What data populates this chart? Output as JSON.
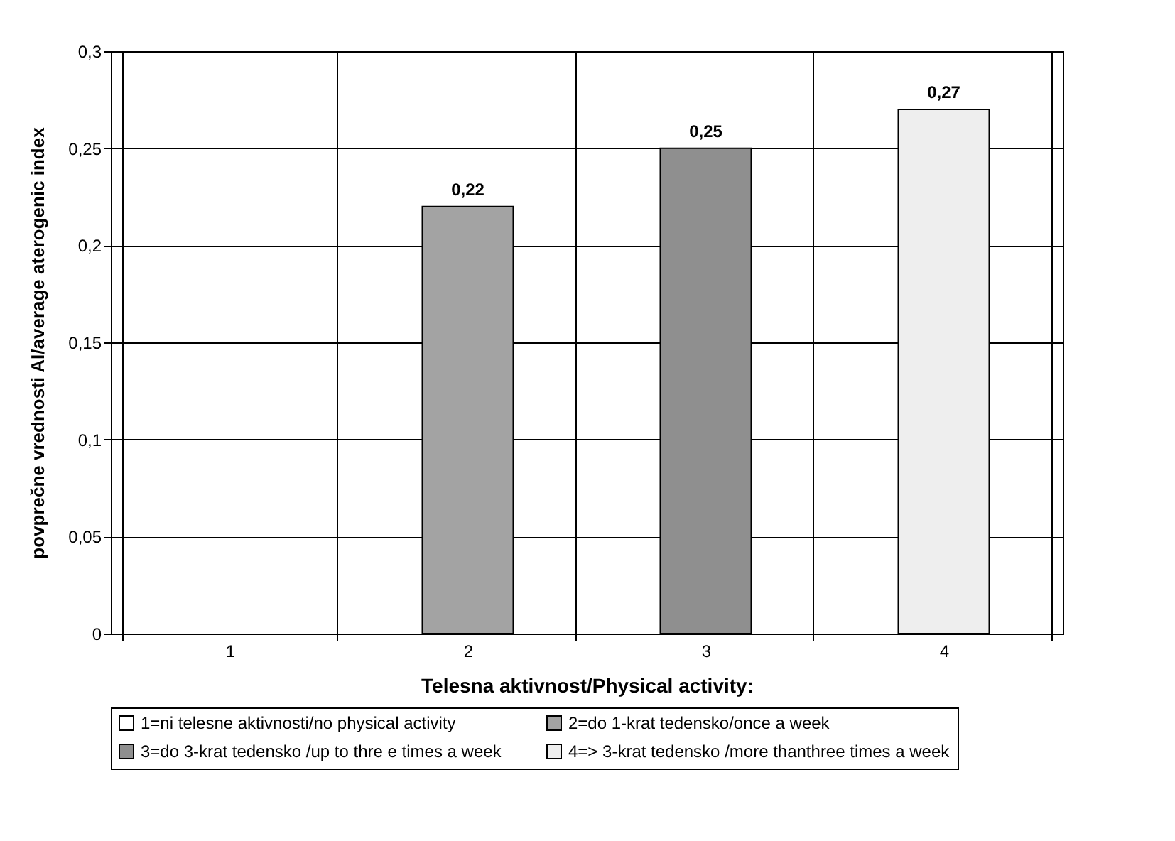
{
  "chart_data": {
    "type": "bar",
    "xlabel": "Telesna aktivnost/Physical activity:",
    "ylabel": "povprečne vrednosti AI/average aterogenic index",
    "categories": [
      "1",
      "2",
      "3",
      "4"
    ],
    "series": [
      {
        "name": "1=ni telesne aktivnosti/no physical activity",
        "color": "#ffffff",
        "values": [
          null,
          null,
          null,
          null
        ]
      },
      {
        "name": "2=do 1-krat tedensko/once a week",
        "color": "#a3a3a3",
        "values": [
          null,
          0.22,
          null,
          null
        ],
        "value_labels": [
          null,
          "0,22",
          null,
          null
        ]
      },
      {
        "name": "3=do 3-krat tedensko /up to thre e times a week",
        "color": "#8f8f8f",
        "values": [
          null,
          null,
          0.25,
          null
        ],
        "value_labels": [
          null,
          null,
          "0,25",
          null
        ]
      },
      {
        "name": "4=> 3-krat tedensko /more thanthree times a week",
        "color": "#eeeeee",
        "values": [
          null,
          null,
          null,
          0.27
        ],
        "value_labels": [
          null,
          null,
          null,
          "0,27"
        ]
      }
    ],
    "ylim": [
      0,
      0.3
    ],
    "yticks": [
      0,
      {
        "value": 0.05,
        "label": "0,05"
      },
      {
        "value": 0.1,
        "label": "0,1"
      },
      {
        "value": 0.15,
        "label": "0,15"
      },
      {
        "value": 0.2,
        "label": "0,2"
      },
      {
        "value": 0.25,
        "label": "0,25"
      },
      {
        "value": 0.3,
        "label": "0,3"
      }
    ],
    "grid": true,
    "legend": "bottom"
  }
}
